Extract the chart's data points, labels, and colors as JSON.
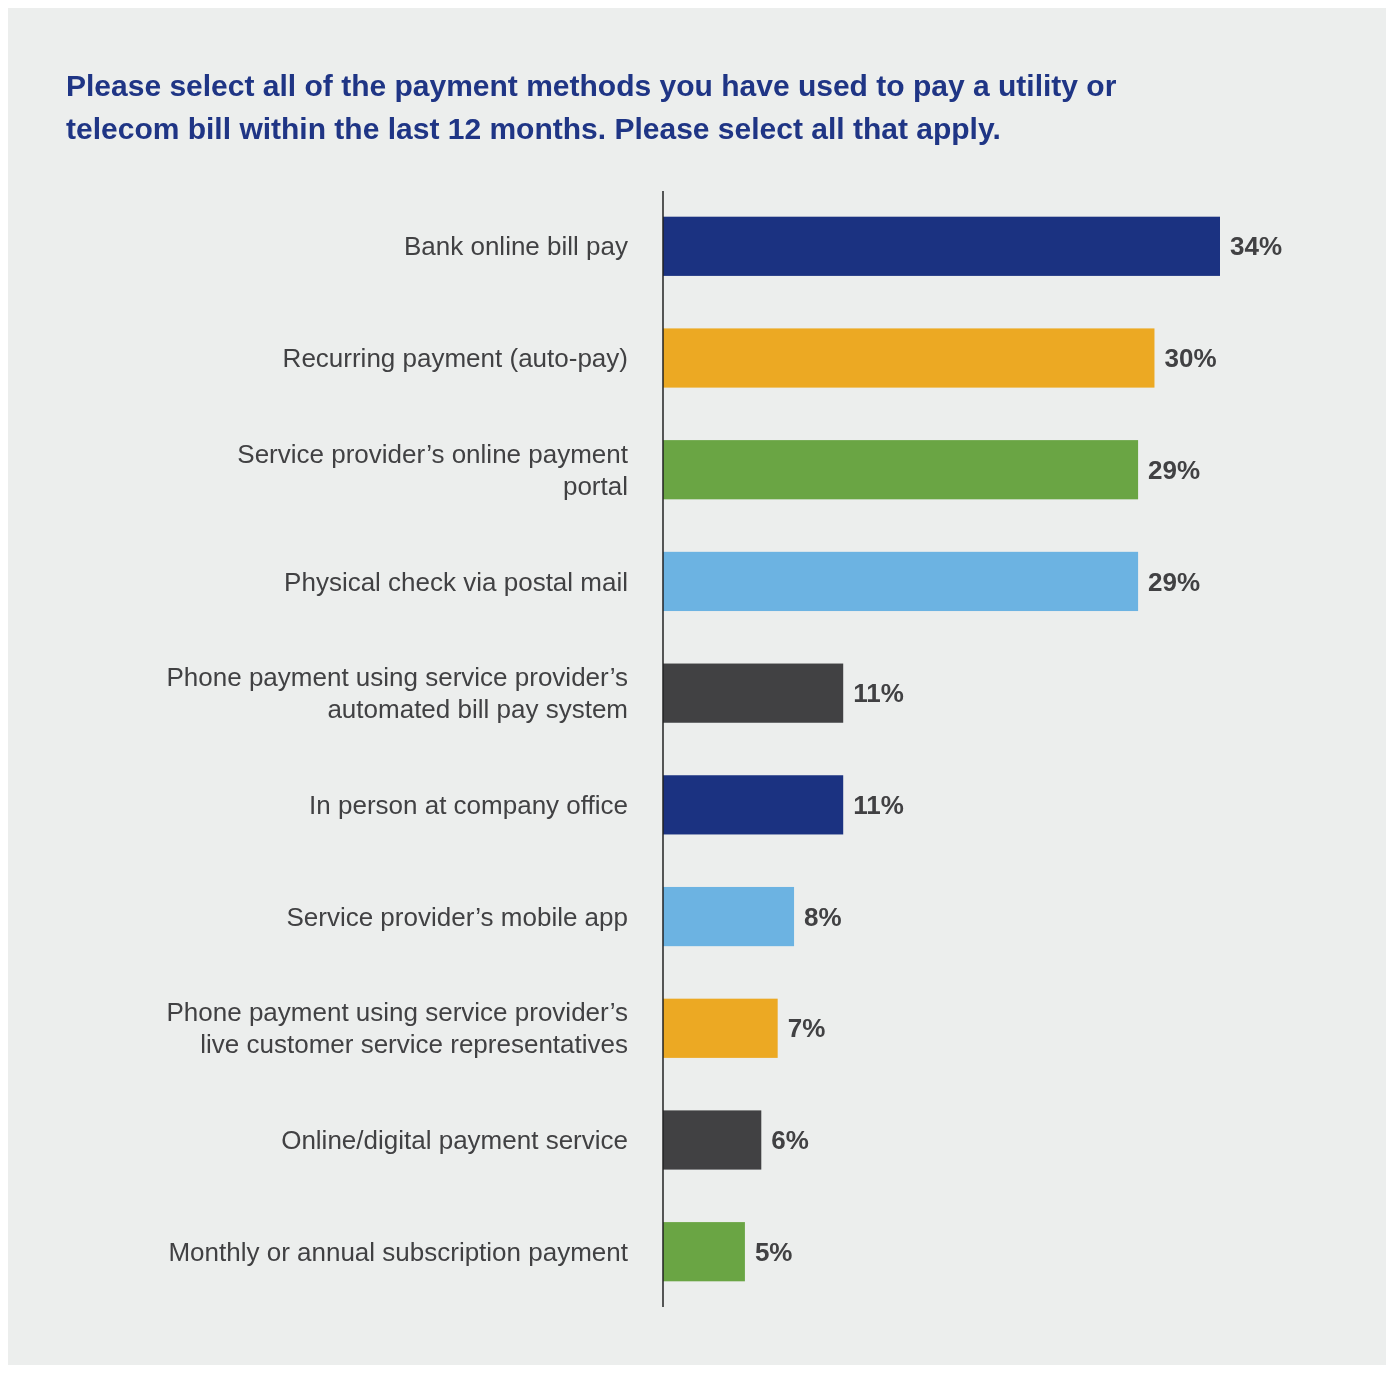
{
  "chart_data": {
    "type": "bar",
    "orientation": "horizontal",
    "title": "Please select all of the payment methods you have used to pay a utility or telecom bill within the last 12 months. Please select all that apply.",
    "categories": [
      "Bank online bill pay",
      "Recurring payment (auto-pay)",
      "Service provider’s online payment portal",
      "Physical check via postal mail",
      "Phone payment using service provider’s automated bill pay system",
      "In person at company office",
      "Service provider’s mobile app",
      "Phone payment using service provider’s live customer service representatives",
      "Online/digital payment service",
      "Monthly or annual subscription payment"
    ],
    "values": [
      34,
      30,
      29,
      29,
      11,
      11,
      8,
      7,
      6,
      5
    ],
    "colors": [
      "#1b3281",
      "#eca923",
      "#6aa544",
      "#6cb3e2",
      "#414143",
      "#1b3281",
      "#6cb3e2",
      "#eca923",
      "#414143",
      "#6aa544"
    ],
    "value_labels": [
      "34%",
      "30%",
      "29%",
      "29%",
      "11%",
      "11%",
      "8%",
      "7%",
      "6%",
      "5%"
    ]
  }
}
